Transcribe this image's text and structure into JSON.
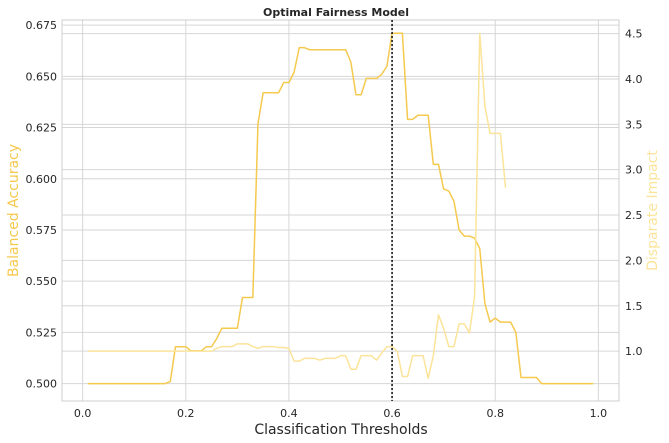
{
  "chart_data": {
    "type": "line",
    "title": "Optimal Fairness Model",
    "xlabel": "Classification Thresholds",
    "ylabel_left": "Balanced Accuracy",
    "ylabel_right": "Disparate Impact",
    "xlim": [
      -0.04,
      1.04
    ],
    "ylim_left": [
      0.4915,
      0.6775
    ],
    "ylim_right": [
      0.45,
      4.65
    ],
    "x_ticks": [
      "0.0",
      "0.2",
      "0.4",
      "0.6",
      "0.8",
      "1.0"
    ],
    "x_tick_values": [
      0.0,
      0.2,
      0.4,
      0.6,
      0.8,
      1.0
    ],
    "y_left_ticks": [
      "0.500",
      "0.525",
      "0.550",
      "0.575",
      "0.600",
      "0.625",
      "0.650",
      "0.675"
    ],
    "y_left_tick_values": [
      0.5,
      0.525,
      0.55,
      0.575,
      0.6,
      0.625,
      0.65,
      0.675
    ],
    "y_right_ticks": [
      "1.0",
      "1.5",
      "2.0",
      "2.5",
      "3.0",
      "3.5",
      "4.0",
      "4.5"
    ],
    "y_right_tick_values": [
      1.0,
      1.5,
      2.0,
      2.5,
      3.0,
      3.5,
      4.0,
      4.5
    ],
    "optimal_threshold": 0.6,
    "grid": true,
    "colors": {
      "balanced_accuracy": "#f5c94e",
      "disparate_impact": "#fbe49a",
      "vline": "#1a1a1a",
      "grid": "#d6d6d6",
      "axis": "#cfcfcf"
    },
    "series": [
      {
        "axis": "left",
        "x": [
          0.01,
          0.02,
          0.03,
          0.04,
          0.05,
          0.06,
          0.07,
          0.08,
          0.09,
          0.1,
          0.11,
          0.12,
          0.13,
          0.14,
          0.15,
          0.16,
          0.17,
          0.18,
          0.19,
          0.2,
          0.21,
          0.22,
          0.23,
          0.24,
          0.25,
          0.26,
          0.27,
          0.28,
          0.29,
          0.3,
          0.31,
          0.32,
          0.33,
          0.34,
          0.35,
          0.36,
          0.37,
          0.38,
          0.39,
          0.4,
          0.41,
          0.42,
          0.43,
          0.44,
          0.45,
          0.46,
          0.47,
          0.48,
          0.49,
          0.5,
          0.51,
          0.52,
          0.53,
          0.54,
          0.55,
          0.56,
          0.57,
          0.58,
          0.59,
          0.6,
          0.61,
          0.62,
          0.63,
          0.64,
          0.65,
          0.66,
          0.67,
          0.68,
          0.69,
          0.7,
          0.71,
          0.72,
          0.73,
          0.74,
          0.75,
          0.76,
          0.77,
          0.78,
          0.79,
          0.8,
          0.81,
          0.82,
          0.83,
          0.84,
          0.85,
          0.86,
          0.87,
          0.88,
          0.89,
          0.9,
          0.91,
          0.92,
          0.93,
          0.94,
          0.95,
          0.96,
          0.97,
          0.98,
          0.99
        ],
        "y": [
          0.5,
          0.5,
          0.5,
          0.5,
          0.5,
          0.5,
          0.5,
          0.5,
          0.5,
          0.5,
          0.5,
          0.5,
          0.5,
          0.5,
          0.5,
          0.5,
          0.501,
          0.518,
          0.518,
          0.518,
          0.516,
          0.516,
          0.516,
          0.518,
          0.518,
          0.522,
          0.527,
          0.527,
          0.527,
          0.527,
          0.542,
          0.542,
          0.542,
          0.627,
          0.642,
          0.642,
          0.642,
          0.642,
          0.647,
          0.647,
          0.652,
          0.664,
          0.664,
          0.663,
          0.663,
          0.663,
          0.663,
          0.663,
          0.663,
          0.663,
          0.663,
          0.657,
          0.641,
          0.641,
          0.649,
          0.649,
          0.649,
          0.651,
          0.655,
          0.671,
          0.671,
          0.671,
          0.629,
          0.629,
          0.631,
          0.631,
          0.631,
          0.607,
          0.607,
          0.595,
          0.594,
          0.589,
          0.575,
          0.572,
          0.572,
          0.571,
          0.566,
          0.539,
          0.53,
          0.532,
          0.53,
          0.53,
          0.53,
          0.525,
          0.503,
          0.503,
          0.503,
          0.503,
          0.5,
          0.5,
          0.5,
          0.5,
          0.5,
          0.5,
          0.5,
          0.5,
          0.5,
          0.5,
          0.5
        ]
      },
      {
        "axis": "right",
        "x": [
          0.01,
          0.02,
          0.03,
          0.04,
          0.05,
          0.06,
          0.07,
          0.08,
          0.09,
          0.1,
          0.11,
          0.12,
          0.13,
          0.14,
          0.15,
          0.16,
          0.17,
          0.18,
          0.19,
          0.2,
          0.21,
          0.22,
          0.23,
          0.24,
          0.25,
          0.26,
          0.27,
          0.28,
          0.29,
          0.3,
          0.31,
          0.32,
          0.33,
          0.34,
          0.35,
          0.36,
          0.37,
          0.38,
          0.39,
          0.4,
          0.41,
          0.42,
          0.43,
          0.44,
          0.45,
          0.46,
          0.47,
          0.48,
          0.49,
          0.5,
          0.51,
          0.52,
          0.53,
          0.54,
          0.55,
          0.56,
          0.57,
          0.58,
          0.59,
          0.6,
          0.61,
          0.62,
          0.63,
          0.64,
          0.65,
          0.66,
          0.67,
          0.68,
          0.69,
          0.7,
          0.71,
          0.72,
          0.73,
          0.74,
          0.75,
          0.76,
          0.77,
          0.78,
          0.79,
          0.8,
          0.81,
          0.82
        ],
        "y": [
          1.0,
          1.0,
          1.0,
          1.0,
          1.0,
          1.0,
          1.0,
          1.0,
          1.0,
          1.0,
          1.0,
          1.0,
          1.0,
          1.0,
          1.0,
          1.0,
          1.0,
          1.0,
          1.0,
          1.0,
          1.0,
          1.0,
          1.0,
          1.0,
          1.0,
          1.03,
          1.05,
          1.05,
          1.05,
          1.08,
          1.08,
          1.08,
          1.05,
          1.03,
          1.05,
          1.05,
          1.05,
          1.04,
          1.04,
          1.03,
          0.89,
          0.89,
          0.92,
          0.92,
          0.92,
          0.9,
          0.92,
          0.92,
          0.92,
          0.95,
          0.95,
          0.8,
          0.8,
          0.95,
          0.95,
          0.95,
          0.9,
          0.98,
          1.05,
          1.05,
          1.0,
          0.72,
          0.72,
          0.95,
          0.95,
          0.95,
          0.7,
          0.95,
          1.4,
          1.25,
          1.05,
          1.05,
          1.3,
          1.3,
          1.2,
          1.6,
          4.5,
          3.7,
          3.4,
          3.4,
          3.4,
          2.8
        ]
      }
    ]
  }
}
